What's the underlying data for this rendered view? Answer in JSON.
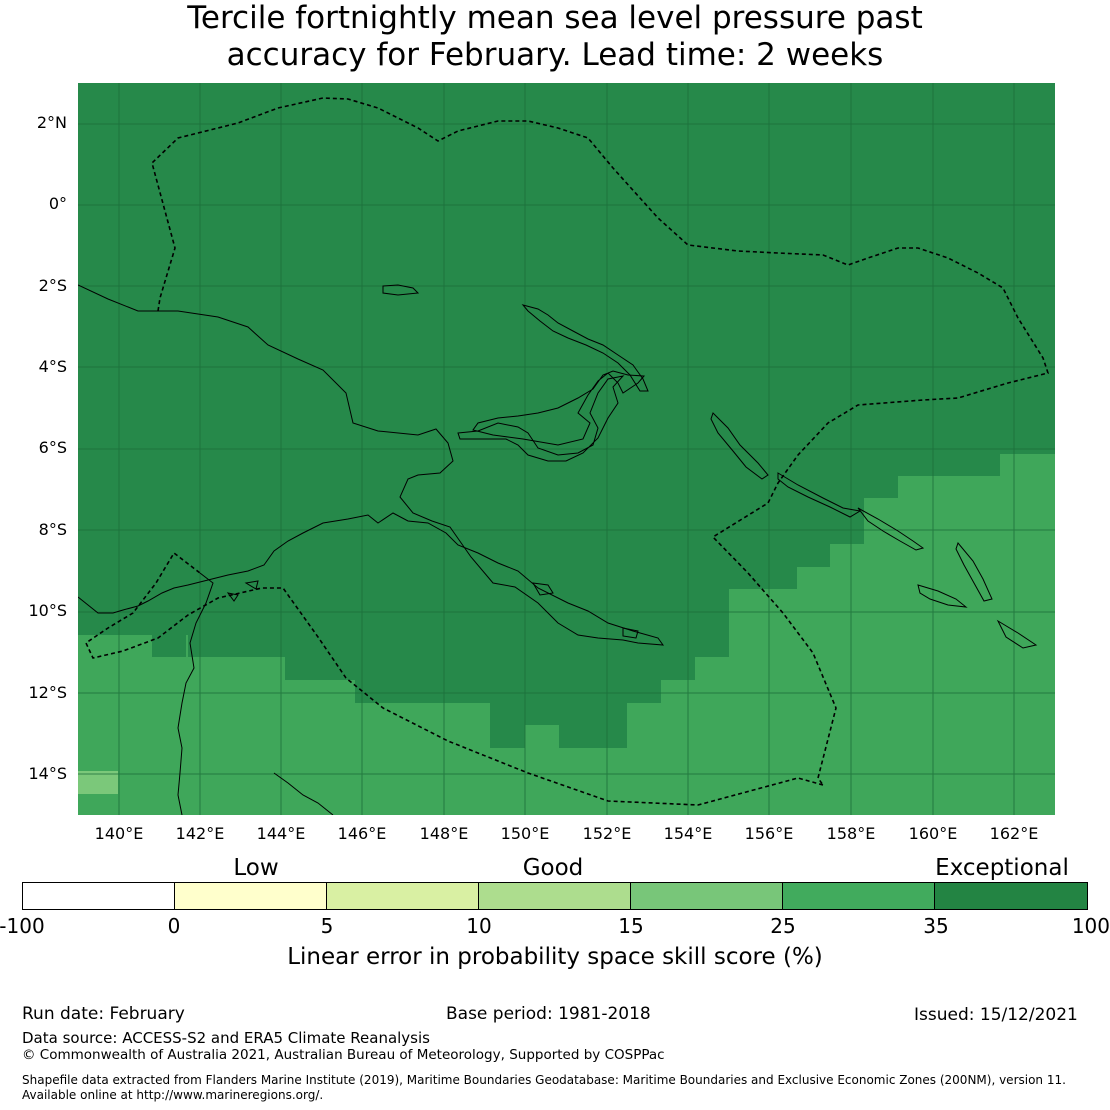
{
  "title": {
    "line1": "Tercile fortnightly mean sea level pressure past",
    "line2": "accuracy for February. Lead time: 2 weeks"
  },
  "map": {
    "y_labels": [
      "2°N",
      "0°",
      "2°S",
      "4°S",
      "6°S",
      "8°S",
      "10°S",
      "12°S",
      "14°S"
    ],
    "x_labels": [
      "140°E",
      "142°E",
      "144°E",
      "146°E",
      "148°E",
      "150°E",
      "152°E",
      "154°E",
      "156°E",
      "158°E",
      "160°E",
      "162°E"
    ],
    "fill_colors": {
      "exceptional": "#26894a",
      "very_good": "#3fa75a",
      "good": "#7bc87a"
    }
  },
  "legend": {
    "categories": [
      "Low",
      "Good",
      "Exceptional"
    ],
    "ticks": [
      "-100",
      "0",
      "5",
      "10",
      "15",
      "25",
      "35",
      "100"
    ],
    "colors": [
      "#ffffff",
      "#ffffcc",
      "#d9f0a3",
      "#addd8e",
      "#78c679",
      "#41ab5d",
      "#238443"
    ],
    "label": "Linear error in probability space skill score (%)"
  },
  "footer": {
    "run_date": "Run date: February",
    "base_period": "Base period: 1981-2018",
    "issued": "Issued: 15/12/2021",
    "data_source": "Data source: ACCESS-S2 and ERA5 Climate Reanalysis",
    "copyright": "© Commonwealth of Australia 2021, Australian Bureau of Meteorology, Supported by COSPPac",
    "shapefile_line1": "Shapefile data extracted from Flanders Marine Institute (2019), Maritime Boundaries Geodatabase: Maritime Boundaries and Exclusive Economic Zones (200NM), version 11.",
    "shapefile_line2": "Available online at http://www.marineregions.org/."
  }
}
